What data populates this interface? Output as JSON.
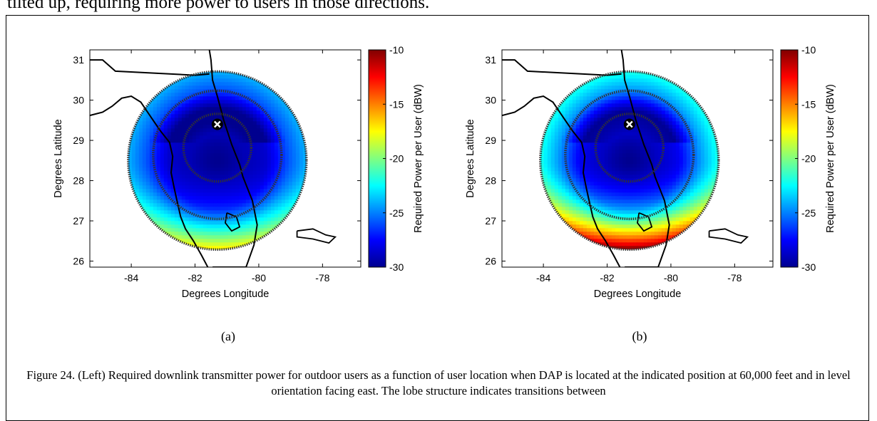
{
  "page": {
    "top_text": "tilted up, requiring more power to users in those directions.",
    "caption": "Figure 24. (Left) Required downlink transmitter power for outdoor users as a function of user location when DAP is located at the indicated position at 60,000 feet and in level orientation facing east. The lobe structure indicates transitions between"
  },
  "colors": {
    "colormap": [
      "#00008f",
      "#0000ff",
      "#0080ff",
      "#00ffff",
      "#80ff80",
      "#ffff00",
      "#ff8000",
      "#ff0000",
      "#800000"
    ],
    "coastline": "#000000",
    "ring": "#333333"
  },
  "icons": {
    "marker": "x-marker-icon"
  },
  "chart_data": [
    {
      "type": "heatmap",
      "panel_label": "(a)",
      "xlabel": "Degrees Longitude",
      "ylabel": "Degrees Latitude",
      "colorbar_label": "Required Power per User (dBW)",
      "xticks": [
        "-84",
        "-82",
        "-80",
        "-78"
      ],
      "yticks": [
        "26",
        "27",
        "28",
        "29",
        "30",
        "31"
      ],
      "cbar_ticks": [
        "-10",
        "-15",
        "-20",
        "-25",
        "-30"
      ],
      "xlim": [
        -85.3,
        -76.8
      ],
      "ylim": [
        25.85,
        31.25
      ],
      "clim": [
        -30,
        -10
      ],
      "dap_position": {
        "lon": -81.3,
        "lat": 29.4
      },
      "coverage_center": {
        "lon": -81.3,
        "lat": 28.5
      },
      "field": {
        "center_value": -30,
        "edge_value": -24,
        "north_gain": 0,
        "south_gain": 7,
        "south_edge_value": -19
      }
    },
    {
      "type": "heatmap",
      "panel_label": "(b)",
      "xlabel": "Degrees Longitude",
      "ylabel": "Degrees Latitude",
      "colorbar_label": "Required Power per User (dBW)",
      "xticks": [
        "-84",
        "-82",
        "-80",
        "-78"
      ],
      "yticks": [
        "26",
        "27",
        "28",
        "29",
        "30",
        "31"
      ],
      "cbar_ticks": [
        "-10",
        "-15",
        "-20",
        "-25",
        "-30"
      ],
      "xlim": [
        -85.3,
        -76.8
      ],
      "ylim": [
        25.85,
        31.25
      ],
      "clim": [
        -30,
        -10
      ],
      "dap_position": {
        "lon": -81.3,
        "lat": 29.4
      },
      "coverage_center": {
        "lon": -81.3,
        "lat": 28.5
      },
      "field": {
        "center_value": -30,
        "edge_value": -22,
        "north_gain": 0,
        "south_gain": 12,
        "south_edge_value": -15
      }
    }
  ]
}
